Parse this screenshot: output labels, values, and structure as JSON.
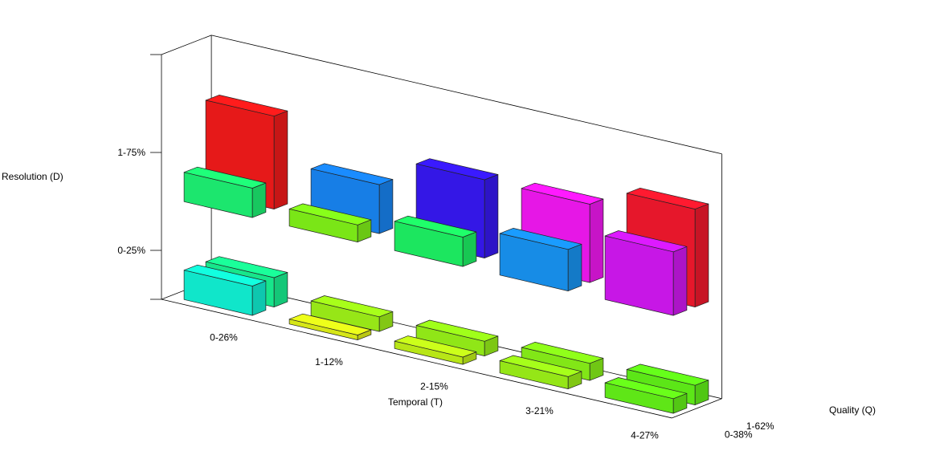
{
  "chart_data": {
    "type": "bar3d",
    "title": "",
    "xlabel": "Temporal (T)",
    "ylabel": "Quality (Q)",
    "zlabel": "Resolution (D)",
    "x_categories": [
      "0-26%",
      "1-12%",
      "2-15%",
      "3-21%",
      "4-27%"
    ],
    "y_categories": [
      "0-38%",
      "1-62%"
    ],
    "z_ticks": [
      "0-25%",
      "1-75%"
    ],
    "z_tick_values": [
      1,
      3
    ],
    "zlim": [
      0,
      5
    ],
    "grid": false,
    "legend": "none",
    "bars": [
      {
        "t": 0,
        "q": 0,
        "level": 0,
        "height": 0.6,
        "color": "#12ffe0"
      },
      {
        "t": 0,
        "q": 1,
        "level": 0,
        "height": 0.6,
        "color": "#1aff9a"
      },
      {
        "t": 0,
        "q": 0,
        "level": 1,
        "height": 0.6,
        "color": "#1fff7a"
      },
      {
        "t": 0,
        "q": 1,
        "level": 1,
        "height": 1.9,
        "color": "#ff1c1c"
      },
      {
        "t": 1,
        "q": 0,
        "level": 0,
        "height": 0.1,
        "color": "#eeff1a"
      },
      {
        "t": 1,
        "q": 1,
        "level": 0,
        "height": 0.3,
        "color": "#a8ff1a"
      },
      {
        "t": 1,
        "q": 0,
        "level": 1,
        "height": 0.35,
        "color": "#88ff1a"
      },
      {
        "t": 1,
        "q": 1,
        "level": 1,
        "height": 1.0,
        "color": "#1a8cff"
      },
      {
        "t": 2,
        "q": 0,
        "level": 0,
        "height": 0.15,
        "color": "#ccff1a"
      },
      {
        "t": 2,
        "q": 1,
        "level": 0,
        "height": 0.3,
        "color": "#a0ff1a"
      },
      {
        "t": 2,
        "q": 0,
        "level": 1,
        "height": 0.6,
        "color": "#1fff6a"
      },
      {
        "t": 2,
        "q": 1,
        "level": 1,
        "height": 1.6,
        "color": "#3a1aff"
      },
      {
        "t": 3,
        "q": 0,
        "level": 0,
        "height": 0.25,
        "color": "#a6ff1a"
      },
      {
        "t": 3,
        "q": 1,
        "level": 0,
        "height": 0.35,
        "color": "#90ff1a"
      },
      {
        "t": 3,
        "q": 0,
        "level": 1,
        "height": 0.85,
        "color": "#1a9cff"
      },
      {
        "t": 3,
        "q": 1,
        "level": 1,
        "height": 1.6,
        "color": "#ff1aff"
      },
      {
        "t": 4,
        "q": 0,
        "level": 0,
        "height": 0.3,
        "color": "#6aff1a"
      },
      {
        "t": 4,
        "q": 1,
        "level": 0,
        "height": 0.4,
        "color": "#66ff1a"
      },
      {
        "t": 4,
        "q": 0,
        "level": 1,
        "height": 1.3,
        "color": "#dd1aff"
      },
      {
        "t": 4,
        "q": 1,
        "level": 1,
        "height": 2.0,
        "color": "#ff1a30"
      }
    ]
  }
}
